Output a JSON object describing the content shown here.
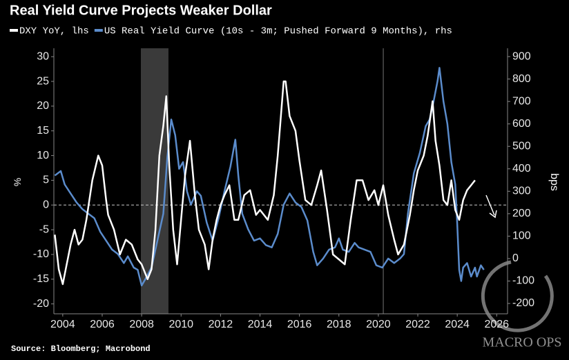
{
  "chart_data": {
    "type": "line",
    "title": "Real Yield Curve Projects Weaker Dollar",
    "y_label": "%",
    "y2_label": "bps",
    "source": "Source: Bloomberg; Macrobond",
    "watermark": "MACRO OPS",
    "xlim": [
      2003.55,
      2026.55
    ],
    "xticks": [
      2004,
      2006,
      2008,
      2010,
      2012,
      2014,
      2016,
      2018,
      2020,
      2022,
      2024,
      2026
    ],
    "ylim": [
      -22,
      31.7
    ],
    "yticks": [
      -20,
      -15,
      -10,
      -5,
      0,
      5,
      10,
      15,
      20,
      25,
      30
    ],
    "y2lim": [
      -246,
      937
    ],
    "y2ticks": [
      -200,
      -100,
      0,
      100,
      200,
      300,
      400,
      500,
      600,
      700,
      800,
      900
    ],
    "highlight": [
      2007.96,
      2009.36
    ],
    "vline": 2020.25,
    "reference_line": 0,
    "series": [
      {
        "name": "DXY YoY, lhs",
        "color": "#ffffff",
        "axis": "y",
        "x": [
          2003.6,
          2003.8,
          2004.0,
          2004.2,
          2004.4,
          2004.6,
          2004.8,
          2005.0,
          2005.2,
          2005.5,
          2005.8,
          2006.0,
          2006.2,
          2006.3,
          2006.6,
          2006.9,
          2007.2,
          2007.5,
          2007.8,
          2008.0,
          2008.3,
          2008.5,
          2008.7,
          2008.9,
          2009.1,
          2009.25,
          2009.4,
          2009.6,
          2009.8,
          2010.0,
          2010.2,
          2010.45,
          2010.7,
          2010.9,
          2011.2,
          2011.4,
          2011.6,
          2011.8,
          2012.0,
          2012.2,
          2012.45,
          2012.7,
          2012.9,
          2013.2,
          2013.5,
          2013.8,
          2014.0,
          2014.4,
          2014.7,
          2014.9,
          2015.2,
          2015.3,
          2015.5,
          2015.8,
          2016.0,
          2016.3,
          2016.6,
          2016.9,
          2017.1,
          2017.4,
          2017.7,
          2018.0,
          2018.3,
          2018.6,
          2018.9,
          2019.2,
          2019.5,
          2019.8,
          2020.0,
          2020.25,
          2020.5,
          2020.8,
          2021.0,
          2021.3,
          2021.6,
          2021.8,
          2022.0,
          2022.3,
          2022.5,
          2022.75,
          2022.9,
          2023.1,
          2023.3,
          2023.5,
          2023.7,
          2023.9,
          2024.1,
          2024.3,
          2024.5,
          2024.7,
          2024.9
        ],
        "values": [
          -6,
          -13,
          -16,
          -12,
          -8,
          -5,
          -8,
          -7,
          -3,
          5,
          10,
          8,
          1,
          -2,
          -5,
          -10,
          -7,
          -8,
          -11,
          -12,
          -15,
          -13,
          -5,
          10,
          16,
          22,
          8,
          -5,
          -12,
          -3,
          6,
          13,
          2,
          -5,
          -8,
          -13,
          -7,
          -3,
          0,
          2,
          4,
          -3,
          -3,
          2,
          3,
          -2,
          -1,
          -3,
          2,
          10,
          25,
          25,
          18,
          15,
          9,
          1,
          0,
          4,
          7,
          -1,
          -10,
          -11,
          -12,
          -3,
          5,
          5,
          1,
          3,
          0,
          4,
          -2,
          -7,
          -10,
          -8,
          -2,
          3,
          7,
          10,
          14,
          21,
          13,
          8,
          1,
          0,
          5,
          -1,
          -3,
          1,
          3,
          4,
          5
        ]
      },
      {
        "name": "US Real Yield Curve (10s - 3m; Pushed Forward 9 Months), rhs",
        "color": "#5b8ccc",
        "axis": "y2",
        "x": [
          2003.6,
          2003.9,
          2004.1,
          2004.4,
          2004.7,
          2005.0,
          2005.3,
          2005.6,
          2005.9,
          2006.2,
          2006.5,
          2006.8,
          2007.1,
          2007.3,
          2007.6,
          2007.8,
          2008.0,
          2008.2,
          2008.5,
          2008.7,
          2008.9,
          2009.1,
          2009.3,
          2009.5,
          2009.7,
          2009.9,
          2010.1,
          2010.3,
          2010.5,
          2010.8,
          2011.0,
          2011.3,
          2011.6,
          2011.9,
          2012.2,
          2012.5,
          2012.75,
          2012.9,
          2013.1,
          2013.4,
          2013.7,
          2014.0,
          2014.3,
          2014.6,
          2014.9,
          2015.2,
          2015.5,
          2015.8,
          2016.1,
          2016.4,
          2016.7,
          2016.9,
          2017.2,
          2017.5,
          2017.8,
          2018.0,
          2018.2,
          2018.5,
          2018.8,
          2019.0,
          2019.3,
          2019.6,
          2019.9,
          2020.2,
          2020.5,
          2020.8,
          2021.1,
          2021.3,
          2021.5,
          2021.8,
          2022.1,
          2022.4,
          2022.6,
          2022.8,
          2023.0,
          2023.1,
          2023.3,
          2023.5,
          2023.7,
          2023.9,
          2024.0,
          2024.1,
          2024.2,
          2024.3,
          2024.5,
          2024.7,
          2024.9,
          2025.0,
          2025.2,
          2025.35
        ],
        "values": [
          370,
          390,
          330,
          290,
          250,
          220,
          200,
          180,
          120,
          80,
          40,
          20,
          -20,
          10,
          -40,
          -50,
          -120,
          -90,
          -40,
          40,
          120,
          200,
          450,
          620,
          550,
          400,
          430,
          300,
          240,
          300,
          280,
          160,
          80,
          180,
          300,
          410,
          530,
          370,
          200,
          130,
          80,
          90,
          60,
          50,
          110,
          240,
          290,
          250,
          230,
          170,
          30,
          -30,
          0,
          40,
          50,
          90,
          40,
          30,
          70,
          50,
          40,
          30,
          -30,
          -40,
          0,
          -20,
          0,
          20,
          200,
          380,
          470,
          590,
          620,
          700,
          790,
          850,
          700,
          600,
          430,
          330,
          150,
          -50,
          -100,
          -40,
          -20,
          -80,
          -40,
          -80,
          -30,
          -50
        ]
      }
    ]
  }
}
